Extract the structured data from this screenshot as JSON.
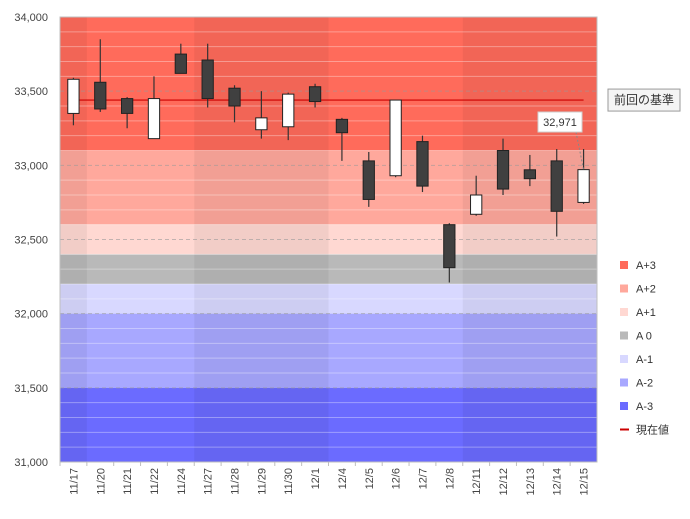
{
  "chart_data": {
    "type": "candlestick",
    "title": "",
    "xlabel": "",
    "ylabel": "",
    "ylim": [
      31000,
      34000
    ],
    "y_ticks": [
      31000,
      31500,
      32000,
      32500,
      33000,
      33500,
      34000
    ],
    "y_tick_labels": [
      "31,000",
      "31,500",
      "32,000",
      "32,500",
      "33,000",
      "33,500",
      "34,000"
    ],
    "categories": [
      "11/17",
      "11/20",
      "11/21",
      "11/22",
      "11/24",
      "11/27",
      "11/28",
      "11/29",
      "11/30",
      "12/1",
      "12/4",
      "12/5",
      "12/6",
      "12/7",
      "12/8",
      "12/11",
      "12/12",
      "12/13",
      "12/14",
      "12/15"
    ],
    "week_start_indices": [
      0,
      1,
      5,
      10,
      15
    ],
    "candles": [
      {
        "open": 33350,
        "high": 33590,
        "low": 33270,
        "close": 33580
      },
      {
        "open": 33560,
        "high": 33850,
        "low": 33360,
        "close": 33380
      },
      {
        "open": 33450,
        "high": 33460,
        "low": 33250,
        "close": 33350
      },
      {
        "open": 33180,
        "high": 33600,
        "low": 33180,
        "close": 33450
      },
      {
        "open": 33750,
        "high": 33820,
        "low": 33620,
        "close": 33620
      },
      {
        "open": 33710,
        "high": 33820,
        "low": 33390,
        "close": 33450
      },
      {
        "open": 33520,
        "high": 33540,
        "low": 33290,
        "close": 33400
      },
      {
        "open": 33240,
        "high": 33500,
        "low": 33180,
        "close": 33320
      },
      {
        "open": 33260,
        "high": 33490,
        "low": 33170,
        "close": 33480
      },
      {
        "open": 33530,
        "high": 33550,
        "low": 33390,
        "close": 33430
      },
      {
        "open": 33310,
        "high": 33320,
        "low": 33030,
        "close": 33220
      },
      {
        "open": 33030,
        "high": 33090,
        "low": 32720,
        "close": 32770
      },
      {
        "open": 32930,
        "high": 33440,
        "low": 32920,
        "close": 33440
      },
      {
        "open": 33160,
        "high": 33200,
        "low": 32820,
        "close": 32860
      },
      {
        "open": 32600,
        "high": 32610,
        "low": 32210,
        "close": 32310
      },
      {
        "open": 32670,
        "high": 32930,
        "low": 32660,
        "close": 32800
      },
      {
        "open": 33100,
        "high": 33180,
        "low": 32800,
        "close": 32840
      },
      {
        "open": 32970,
        "high": 33070,
        "low": 32860,
        "close": 32910
      },
      {
        "open": 33030,
        "high": 33110,
        "low": 32520,
        "close": 32690
      },
      {
        "open": 32750,
        "high": 33110,
        "low": 32740,
        "close": 32971
      }
    ],
    "reference_line": {
      "value": 33440,
      "label": "前回の基準",
      "color": "#cc0000"
    },
    "last_value_label": "32,971",
    "bands": [
      {
        "name": "A+3",
        "from": 33100,
        "to": 34000,
        "color": "#ff6b5b"
      },
      {
        "name": "A+2",
        "from": 32600,
        "to": 33100,
        "color": "#ffa89c"
      },
      {
        "name": "A+1",
        "from": 32400,
        "to": 32600,
        "color": "#ffd8d2"
      },
      {
        "name": "A 0",
        "from": 32200,
        "to": 32400,
        "color": "#b9b9b9"
      },
      {
        "name": "A-1",
        "from": 32000,
        "to": 32200,
        "color": "#d8d8ff"
      },
      {
        "name": "A-2",
        "from": 31500,
        "to": 32000,
        "color": "#a8a8ff"
      },
      {
        "name": "A-3",
        "from": 31000,
        "to": 31500,
        "color": "#6b6bff"
      }
    ],
    "legend": [
      {
        "label": "A+3",
        "color": "#ff6b5b",
        "kind": "box"
      },
      {
        "label": "A+2",
        "color": "#ffa89c",
        "kind": "box"
      },
      {
        "label": "A+1",
        "color": "#ffd8d2",
        "kind": "box"
      },
      {
        "label": "A 0",
        "color": "#b9b9b9",
        "kind": "box"
      },
      {
        "label": "A-1",
        "color": "#d8d8ff",
        "kind": "box"
      },
      {
        "label": "A-2",
        "color": "#a8a8ff",
        "kind": "box"
      },
      {
        "label": "A-3",
        "color": "#6b6bff",
        "kind": "box"
      },
      {
        "label": "現在値",
        "color": "#cc0000",
        "kind": "line"
      }
    ],
    "legend_position": "right",
    "grid": true,
    "colors": {
      "up_body": "#ffffff",
      "down_body": "#404040",
      "wick": "#333333",
      "axis_text": "#444444"
    }
  }
}
